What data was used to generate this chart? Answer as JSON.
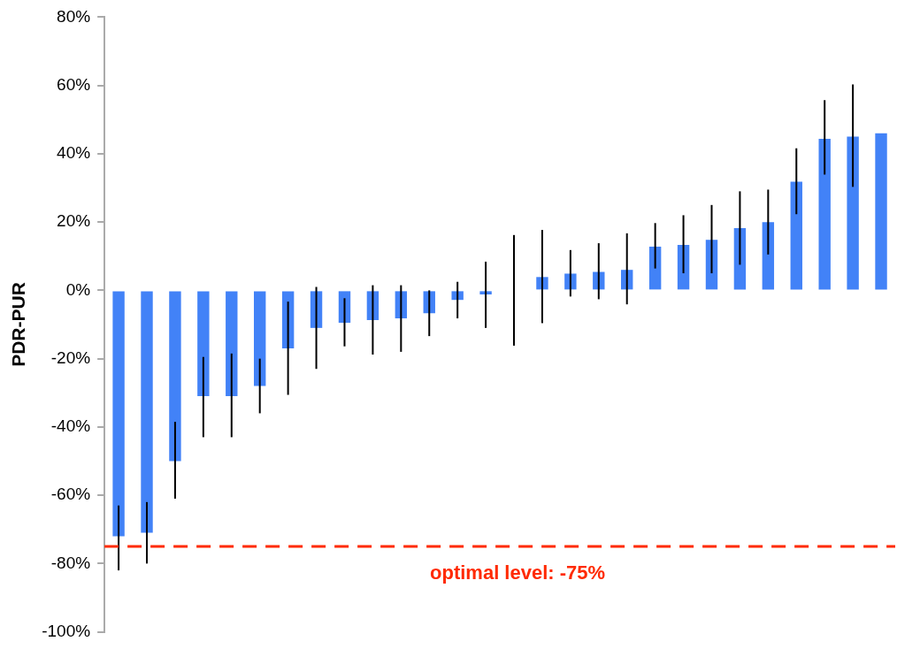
{
  "chart_data": {
    "type": "bar",
    "ylabel": "PDR-PUR",
    "categories": [
      null,
      null,
      null,
      null,
      null,
      null,
      null,
      null,
      null,
      null,
      null,
      null,
      null,
      null,
      null,
      null,
      null,
      null,
      null,
      null,
      null,
      null,
      null,
      null,
      null,
      null,
      null,
      null
    ],
    "values": [
      -72,
      -71,
      -50,
      -31,
      -31,
      -28,
      -17,
      -11,
      -9.5,
      -8.7,
      -8.2,
      -6.7,
      -2.8,
      -1.2,
      0,
      3.9,
      4.9,
      5.4,
      6,
      12.8,
      13.3,
      14.8,
      18.2,
      20,
      31.8,
      44.4,
      45,
      46
    ],
    "errors": [
      [
        -82,
        -63
      ],
      [
        -80,
        -62
      ],
      [
        -61,
        -38.5
      ],
      [
        -43,
        -19.5
      ],
      [
        -43,
        -18.5
      ],
      [
        -36,
        -20
      ],
      [
        -30.6,
        -3.3
      ],
      [
        -23,
        1
      ],
      [
        -16.4,
        -2.3
      ],
      [
        -18.8,
        1.5
      ],
      [
        -18,
        1.5
      ],
      [
        -13.4,
        0
      ],
      [
        -8.2,
        2.5
      ],
      [
        -11,
        8.4
      ],
      [
        -16.2,
        16.2
      ],
      [
        -9.6,
        17.7
      ],
      [
        -1.8,
        11.8
      ],
      [
        -2.6,
        13.8
      ],
      [
        -4.1,
        16.7
      ],
      [
        6.4,
        19.7
      ],
      [
        5,
        22
      ],
      [
        5,
        25
      ],
      [
        7.5,
        29
      ],
      [
        10.5,
        29.5
      ],
      [
        22.3,
        41.6
      ],
      [
        33.9,
        55.7
      ],
      [
        30.3,
        60.3
      ],
      null
    ],
    "color": "#4282f7",
    "ylim": [
      -100,
      80
    ],
    "yticks": [
      {
        "value": -100,
        "label": "-100%"
      },
      {
        "value": -80,
        "label": "-80%"
      },
      {
        "value": -60,
        "label": "-60%"
      },
      {
        "value": -40,
        "label": "-40%"
      },
      {
        "value": -20,
        "label": "-20%"
      },
      {
        "value": 0,
        "label": "0%"
      },
      {
        "value": 20,
        "label": "20%"
      },
      {
        "value": 40,
        "label": "40%"
      },
      {
        "value": 60,
        "label": "60%"
      },
      {
        "value": 80,
        "label": "80%"
      }
    ],
    "ref_lines": [
      {
        "axis": "y",
        "value": -75,
        "label": "optimal level: -75%",
        "color": "#ff2a00",
        "line_style": "dashed"
      }
    ],
    "tick_labels": "y",
    "grid": false,
    "legend": false
  }
}
